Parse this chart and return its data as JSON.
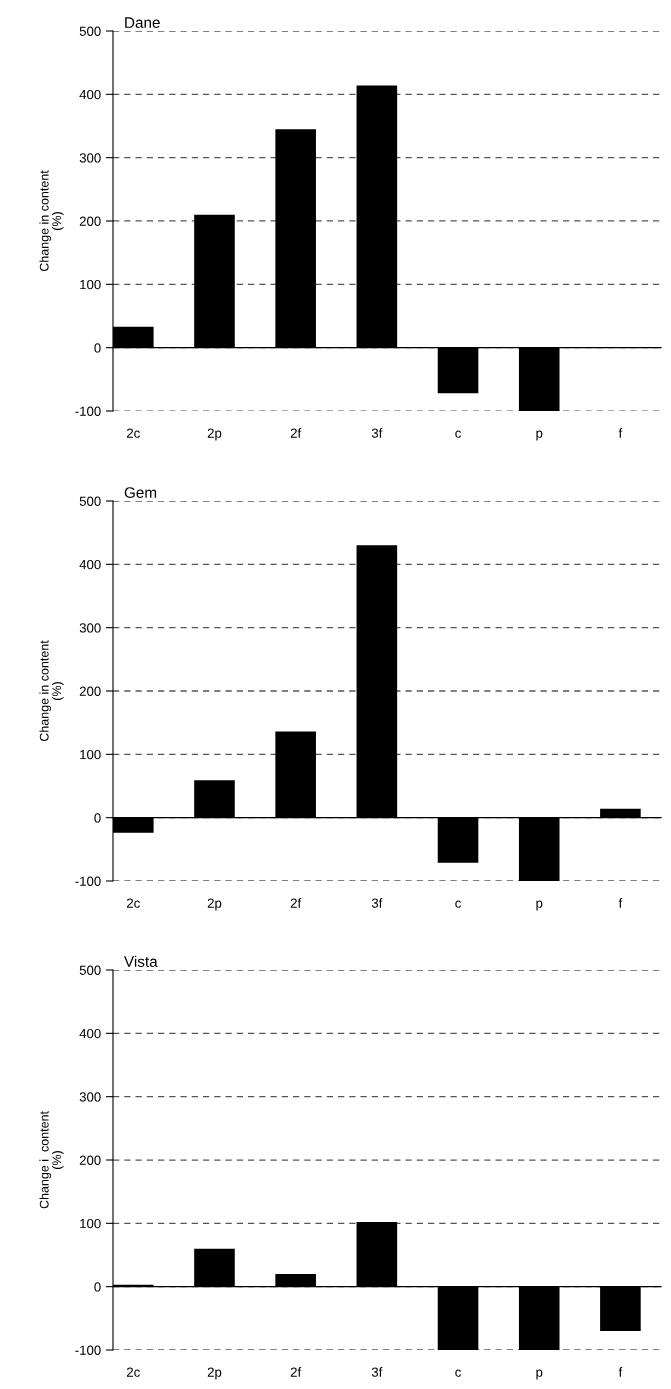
{
  "chart_data": [
    {
      "type": "bar",
      "title": "Dane",
      "ylabel": "Change in content\n(%)",
      "categories": [
        "2c",
        "2p",
        "2f",
        "3f",
        "c",
        "p",
        "f"
      ],
      "values": [
        33,
        210,
        345,
        414,
        -72,
        -100,
        0
      ],
      "color": "#000000",
      "ylim": [
        -100,
        500
      ],
      "yticks": [
        -100,
        0,
        100,
        200,
        300,
        400,
        500
      ],
      "grid": "y",
      "line_style": "dashed"
    },
    {
      "type": "bar",
      "title": "Gem",
      "ylabel": "Change in content\n(%)",
      "categories": [
        "2c",
        "2p",
        "2f",
        "3f",
        "c",
        "p",
        "f"
      ],
      "values": [
        -24,
        59,
        136,
        430,
        -71,
        -100,
        14
      ],
      "color": "#000000",
      "ylim": [
        -100,
        500
      ],
      "yticks": [
        -100,
        0,
        100,
        200,
        300,
        400,
        500
      ],
      "grid": "y",
      "line_style": "dashed"
    },
    {
      "type": "bar",
      "title": "Vista",
      "ylabel": "Change i  content\n(%)",
      "categories": [
        "2c",
        "2p",
        "2f",
        "3f",
        "c",
        "p",
        "f"
      ],
      "values": [
        3,
        60,
        20,
        102,
        -100,
        -100,
        -70
      ],
      "color": "#000000",
      "ylim": [
        -100,
        500
      ],
      "yticks": [
        -100,
        0,
        100,
        200,
        300,
        400,
        500
      ],
      "grid": "y",
      "line_style": "dashed"
    }
  ]
}
